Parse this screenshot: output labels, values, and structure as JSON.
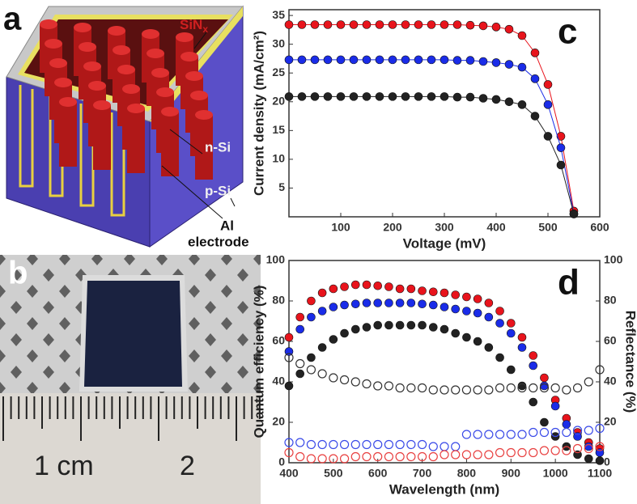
{
  "diagram": {
    "label": "a",
    "sin": "SiN",
    "sin_sub": "x",
    "texts": [
      "n-Si",
      "p-Si",
      "Al",
      "electrode"
    ]
  },
  "photo": {
    "label": "b",
    "texts": [
      "1 cm",
      "2"
    ]
  },
  "chart_data": [
    {
      "type": "scatter",
      "panel_label": "c",
      "xlabel": "Voltage (mV)",
      "ylabel": "Current density (mA/cm²)",
      "xlim": [
        0,
        600
      ],
      "xticks": [
        100,
        200,
        300,
        400,
        500,
        600
      ],
      "ylim": [
        0,
        36
      ],
      "yticks": [
        5,
        10,
        15,
        20,
        25,
        30,
        35
      ],
      "connect": true,
      "x": [
        0,
        25,
        50,
        75,
        100,
        125,
        150,
        175,
        200,
        225,
        250,
        275,
        300,
        325,
        350,
        375,
        400,
        425,
        450,
        475,
        500,
        525,
        550
      ],
      "series": [
        {
          "color": "#e8141c",
          "marker": "filled",
          "values": [
            33.4,
            33.4,
            33.4,
            33.4,
            33.4,
            33.4,
            33.4,
            33.4,
            33.4,
            33.4,
            33.4,
            33.4,
            33.4,
            33.4,
            33.3,
            33.2,
            33.0,
            32.6,
            31.5,
            28.5,
            23,
            14,
            1
          ]
        },
        {
          "color": "#1a2ce8",
          "marker": "filled",
          "values": [
            27.3,
            27.3,
            27.3,
            27.3,
            27.3,
            27.3,
            27.3,
            27.3,
            27.3,
            27.3,
            27.3,
            27.3,
            27.3,
            27.2,
            27.2,
            27.0,
            26.8,
            26.5,
            26,
            24,
            19.5,
            12,
            0.5
          ]
        },
        {
          "color": "#222222",
          "marker": "filled",
          "values": [
            20.9,
            20.9,
            20.9,
            20.9,
            20.9,
            20.9,
            20.9,
            20.9,
            20.9,
            20.9,
            20.9,
            20.9,
            20.9,
            20.8,
            20.8,
            20.6,
            20.4,
            20.0,
            19.5,
            17.5,
            14,
            9,
            0.5
          ]
        }
      ]
    },
    {
      "type": "scatter",
      "panel_label": "d",
      "xlabel": "Wavelength (nm)",
      "ylabel": "Quantum efficiency (%)",
      "y2label": "Reflectance (%)",
      "xlim": [
        400,
        1100
      ],
      "xticks": [
        400,
        500,
        600,
        700,
        800,
        900,
        1000,
        1100
      ],
      "ylim": [
        0,
        100
      ],
      "yticks": [
        0,
        20,
        40,
        60,
        80,
        100
      ],
      "y2lim": [
        0,
        100
      ],
      "y2ticks": [
        0,
        20,
        40,
        60,
        80,
        100
      ],
      "connect": false,
      "x": [
        400,
        425,
        450,
        475,
        500,
        525,
        550,
        575,
        600,
        625,
        650,
        675,
        700,
        725,
        750,
        775,
        800,
        825,
        850,
        875,
        900,
        925,
        950,
        975,
        1000,
        1025,
        1050,
        1075,
        1100
      ],
      "series": [
        {
          "color": "#e8141c",
          "marker": "filled",
          "values": [
            62,
            72,
            80,
            84,
            86,
            87,
            88,
            88,
            87.5,
            87,
            86,
            86,
            85,
            84.5,
            84,
            83,
            82,
            81,
            79,
            75,
            69,
            62,
            53,
            42,
            31,
            22,
            15,
            10,
            7
          ]
        },
        {
          "color": "#1a2ce8",
          "marker": "filled",
          "values": [
            55,
            66,
            72,
            75,
            77,
            78,
            78.5,
            79,
            79,
            79,
            79,
            79,
            78.5,
            78,
            77,
            76,
            75,
            74,
            72,
            69,
            64,
            57,
            48,
            38,
            28,
            19,
            13,
            8,
            5
          ]
        },
        {
          "color": "#222222",
          "marker": "filled",
          "values": [
            38,
            44,
            52,
            57,
            61,
            64,
            66,
            67,
            68,
            68,
            68,
            68,
            68,
            67,
            66,
            64,
            62,
            60,
            57,
            52,
            46,
            38,
            30,
            20,
            13,
            8,
            4,
            2,
            1
          ]
        },
        {
          "color": "#333333",
          "marker": "open",
          "axis": "y2",
          "values": [
            52,
            49,
            46,
            44,
            42,
            41,
            40,
            39,
            38,
            38,
            37,
            37,
            37,
            36,
            36,
            36,
            36,
            36,
            36,
            37,
            37,
            37,
            37,
            37,
            37,
            36,
            37,
            40,
            46
          ]
        },
        {
          "color": "#3a4ae8",
          "marker": "open",
          "axis": "y2",
          "values": [
            10,
            10,
            9,
            9,
            9,
            9,
            9,
            9,
            9,
            9,
            9,
            9,
            9,
            8,
            8,
            8,
            14,
            14,
            14,
            14,
            14,
            14,
            15,
            15,
            15,
            15,
            16,
            16,
            17
          ]
        },
        {
          "color": "#e84040",
          "marker": "open",
          "axis": "y2",
          "values": [
            5,
            3,
            2,
            2,
            2,
            2,
            3,
            3,
            3,
            3,
            3,
            3,
            3,
            3,
            4,
            4,
            4,
            4,
            4,
            5,
            5,
            5,
            5,
            6,
            6,
            6,
            7,
            7,
            8
          ]
        }
      ]
    }
  ]
}
